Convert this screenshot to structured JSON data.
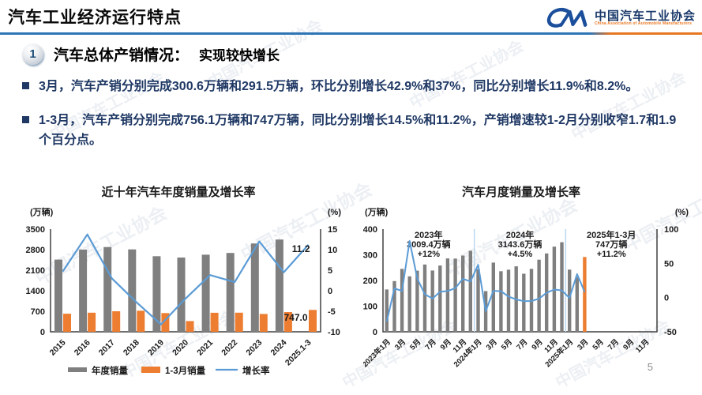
{
  "header": {
    "title": "汽车工业经济运行特点",
    "logo": {
      "org_cn": "中国汽车工业协会",
      "org_en": "China Association of Automobile Manufacturers"
    }
  },
  "section": {
    "number": "1",
    "title": "汽车总体产销情况：",
    "subtitle": "实现较快增长"
  },
  "bullets": [
    "3月，汽车产销分别完成300.6万辆和291.5万辆，环比分别增长42.9%和37%，同比分别增长11.9%和8.2%。",
    "1-3月，汽车产销分别完成756.1万辆和747万辆，同比分别增长14.5%和11.2%，产销增速较1-2月分别收窄1.7和1.9个百分点。"
  ],
  "watermark_text": "中国汽车工业协会",
  "page_number": "5",
  "colors": {
    "accent_blue": "#2E75B6",
    "accent_orange": "#ED7D31",
    "bar_gray": "#7F7F7F",
    "line_blue": "#5B9BD5",
    "text_navy": "#1F3864",
    "separator_blue": "#BDD7EE",
    "axis_gray": "#404040"
  },
  "chart_data": [
    {
      "id": "annual",
      "type": "bar",
      "title": "近十年汽车年度销量及增长率",
      "left_axis": {
        "label": "(万辆)",
        "ticks": [
          3500,
          2800,
          2100,
          1400,
          700,
          0
        ],
        "range": [
          0,
          3500
        ]
      },
      "right_axis": {
        "label": "(%)",
        "ticks": [
          15,
          10,
          5,
          0,
          -5,
          -10
        ],
        "range": [
          -10,
          15
        ]
      },
      "categories": [
        "2015",
        "2016",
        "2017",
        "2018",
        "2019",
        "2020",
        "2021",
        "2022",
        "2023",
        "2024",
        "2025.1-3"
      ],
      "series": [
        {
          "name": "年度销量",
          "type": "bar",
          "axis": "left",
          "color": "#7F7F7F",
          "values": [
            2459.8,
            2802.8,
            2887.9,
            2808.1,
            2576.9,
            2531.1,
            2627.5,
            2686.4,
            3009.4,
            3143.6,
            null
          ]
        },
        {
          "name": "1-3月销量",
          "type": "bar",
          "axis": "left",
          "color": "#ED7D31",
          "values": [
            615.3,
            652.7,
            700.2,
            718.3,
            637.2,
            367.2,
            648.4,
            650.9,
            607.6,
            672,
            747
          ]
        },
        {
          "name": "增长率",
          "type": "line",
          "axis": "right",
          "color": "#5B9BD5",
          "values": [
            4.7,
            13.7,
            3,
            -2.8,
            -8.2,
            -1.9,
            3.8,
            2.1,
            12,
            4.5,
            11.2
          ]
        }
      ],
      "point_labels": [
        {
          "text": "11.2",
          "series": 2,
          "index": 10
        },
        {
          "text": "747.0",
          "series": 1,
          "index": 10
        }
      ],
      "legend": [
        "年度销量",
        "1-3月销量",
        "增长率"
      ],
      "legend_position": "bottom"
    },
    {
      "id": "monthly",
      "type": "bar",
      "title": "汽车月度销量及增长率",
      "left_axis": {
        "label": "(万辆)",
        "ticks": [
          400,
          300,
          200,
          100,
          0
        ],
        "range": [
          0,
          400
        ]
      },
      "right_axis": {
        "label": "(%)",
        "ticks": [
          100,
          50,
          0,
          -50
        ],
        "range": [
          -50,
          100
        ]
      },
      "slots": 36,
      "x_tick_labels": [
        "2023年1月",
        "3月",
        "5月",
        "7月",
        "9月",
        "11月",
        "2024年1月",
        "3月",
        "5月",
        "7月",
        "9月",
        "11月",
        "2025年1月",
        "3月",
        "5月",
        "7月",
        "9月",
        "11月"
      ],
      "separators_at_slot": [
        12,
        24
      ],
      "annotations": [
        {
          "lines": [
            "2023年",
            "3009.4万辆",
            "+12%"
          ]
        },
        {
          "lines": [
            "2024年",
            "3143.6万辆",
            "+4.5%"
          ]
        },
        {
          "lines": [
            "2025年1-3月",
            "747万辆",
            "+11.2%"
          ]
        }
      ],
      "series": [
        {
          "name": "月度销量",
          "type": "bar",
          "axis": "left",
          "color": "#7F7F7F",
          "last_bar_color": "#ED7D31",
          "values": [
            164.9,
            197.6,
            245.1,
            215.9,
            238.2,
            262.2,
            238.8,
            258.2,
            285.8,
            285.3,
            297,
            315.6,
            243.9,
            158.4,
            269.4,
            235.9,
            241.7,
            255.2,
            226.2,
            245.3,
            280.9,
            305.3,
            331.6,
            348.9,
            242.3,
            212.9,
            291.5
          ]
        },
        {
          "name": "增长率",
          "type": "line",
          "axis": "right",
          "color": "#5B9BD5",
          "values": [
            -35,
            13.5,
            9.7,
            82.7,
            27.9,
            4.8,
            -1.4,
            8.4,
            9.5,
            13.8,
            27.4,
            23.5,
            47.9,
            -19.9,
            9.9,
            9.3,
            1.5,
            -2.7,
            -5.2,
            -5,
            -1.7,
            7,
            11.7,
            10.5,
            -0.6,
            34.4,
            8.2
          ]
        }
      ]
    }
  ]
}
